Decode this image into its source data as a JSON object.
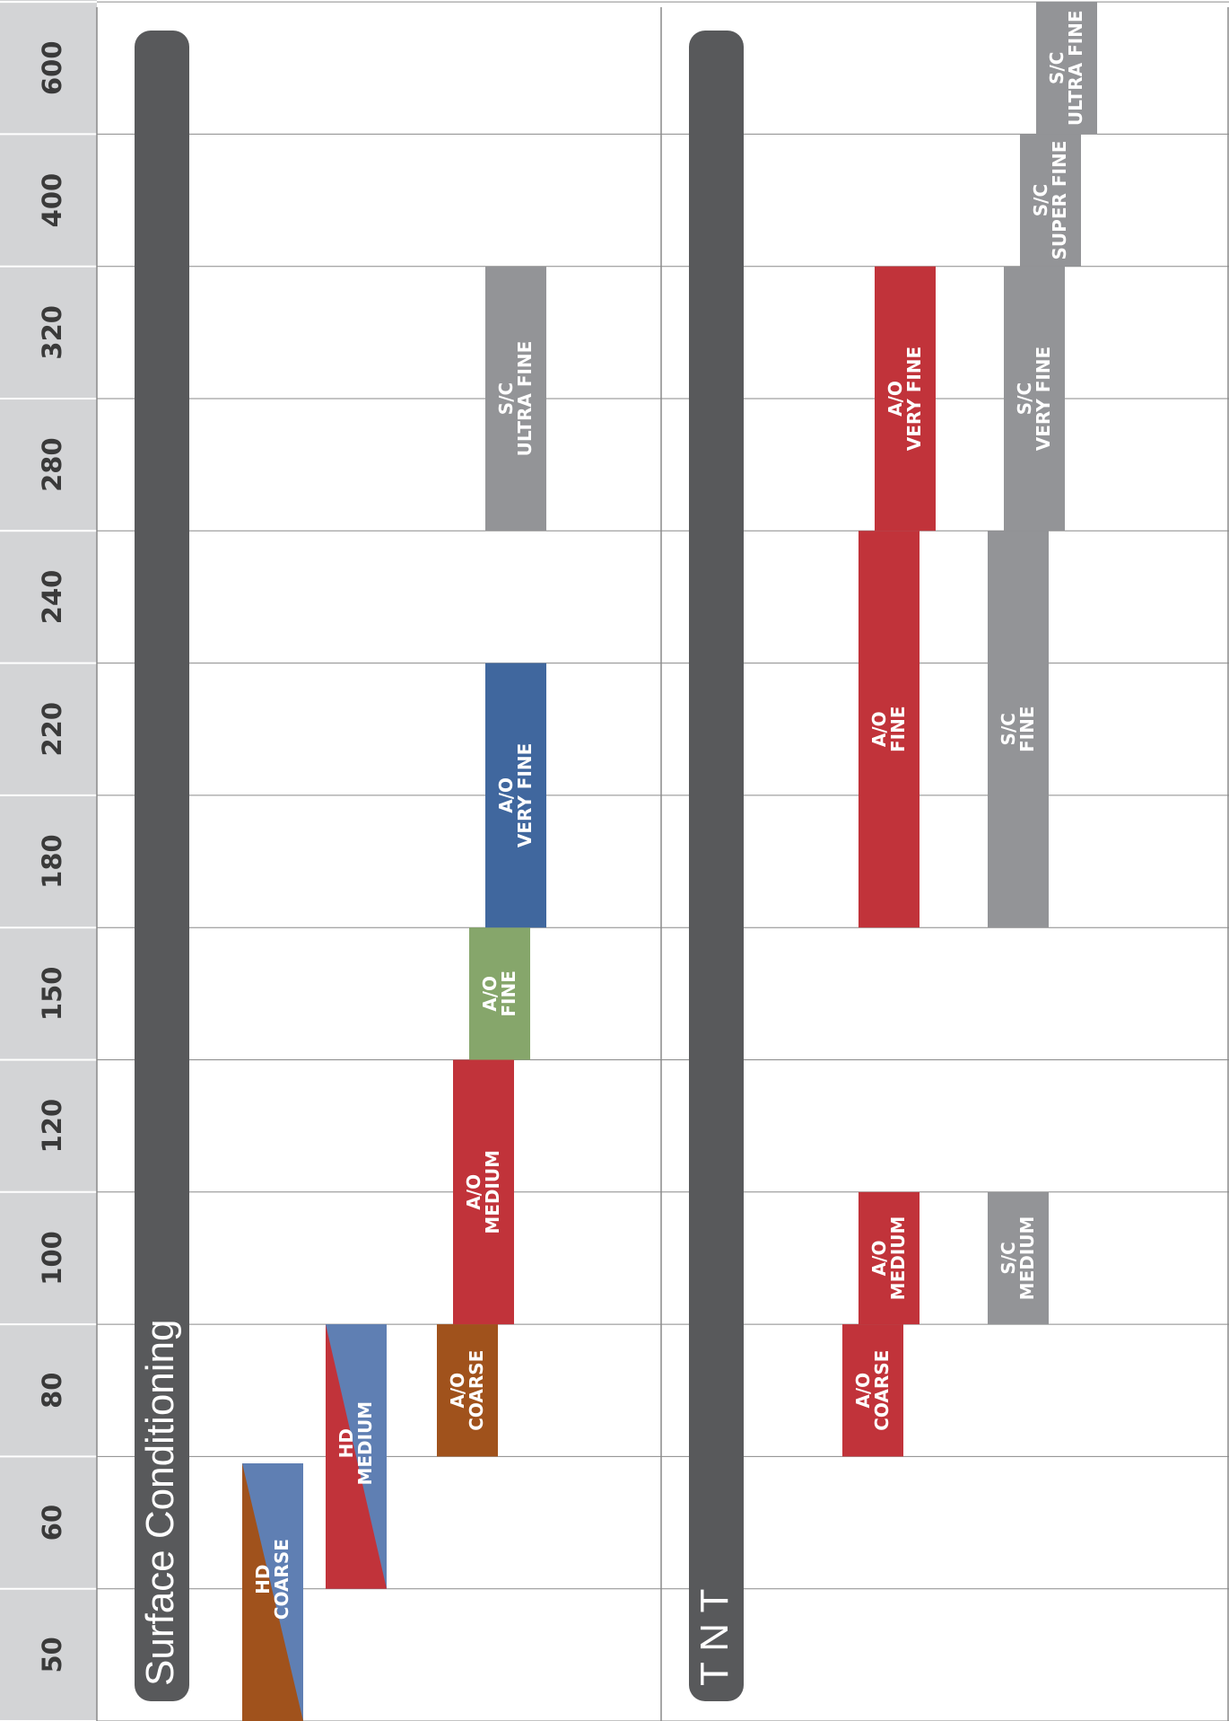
{
  "chart_data": {
    "type": "bar",
    "orientation": "vertical-page-rotated",
    "grits": [
      "50",
      "60",
      "80",
      "100",
      "120",
      "150",
      "180",
      "220",
      "240",
      "280",
      "320",
      "400",
      "600"
    ],
    "sections": [
      {
        "title": "Surface Conditioning",
        "bars": [
          {
            "line1": "HD",
            "line2": "COARSE",
            "start": "50",
            "end": "60",
            "color": "#a0521c",
            "color2": "#5f7fb3",
            "style": "diagonal"
          },
          {
            "line1": "HD",
            "line2": "MEDIUM",
            "start": "60",
            "end": "80",
            "color": "#c1333a",
            "color2": "#5f7fb3",
            "style": "diagonal"
          },
          {
            "line1": "A/O",
            "line2": "COARSE",
            "start": "80",
            "end": "80",
            "color": "#a0521c"
          },
          {
            "line1": "A/O",
            "line2": "MEDIUM",
            "start": "100",
            "end": "120",
            "color": "#c1333a"
          },
          {
            "line1": "A/O",
            "line2": "FINE",
            "start": "150",
            "end": "150",
            "color": "#86a66b"
          },
          {
            "line1": "A/O",
            "line2": "VERY FINE",
            "start": "180",
            "end": "220",
            "color": "#40679e"
          },
          {
            "line1": "S/C",
            "line2": "ULTRA FINE",
            "start": "280",
            "end": "320",
            "color": "#939497"
          }
        ]
      },
      {
        "title": "T N T",
        "bars": [
          {
            "line1": "A/O",
            "line2": "COARSE",
            "start": "80",
            "end": "80",
            "color": "#c1333a"
          },
          {
            "line1": "A/O",
            "line2": "MEDIUM",
            "start": "100",
            "end": "100",
            "color": "#c1333a"
          },
          {
            "line1": "A/O",
            "line2": "FINE",
            "start": "180",
            "end": "240",
            "color": "#c1333a"
          },
          {
            "line1": "A/O",
            "line2": "VERY FINE",
            "start": "280",
            "end": "320",
            "color": "#c1333a"
          },
          {
            "line1": "S/C",
            "line2": "MEDIUM",
            "start": "100",
            "end": "100",
            "color": "#939497"
          },
          {
            "line1": "S/C",
            "line2": "FINE",
            "start": "180",
            "end": "240",
            "color": "#939497"
          },
          {
            "line1": "S/C",
            "line2": "VERY FINE",
            "start": "280",
            "end": "320",
            "color": "#939497"
          },
          {
            "line1": "S/C",
            "line2": "SUPER FINE",
            "start": "400",
            "end": "400",
            "color": "#939497"
          },
          {
            "line1": "S/C",
            "line2": "ULTRA FINE",
            "start": "600",
            "end": "600",
            "color": "#939497"
          }
        ]
      }
    ]
  },
  "colors": {
    "grit_column_bg": "#d3d4d6",
    "grid_line": "#8a8a8a",
    "section_band": "#58595b"
  }
}
